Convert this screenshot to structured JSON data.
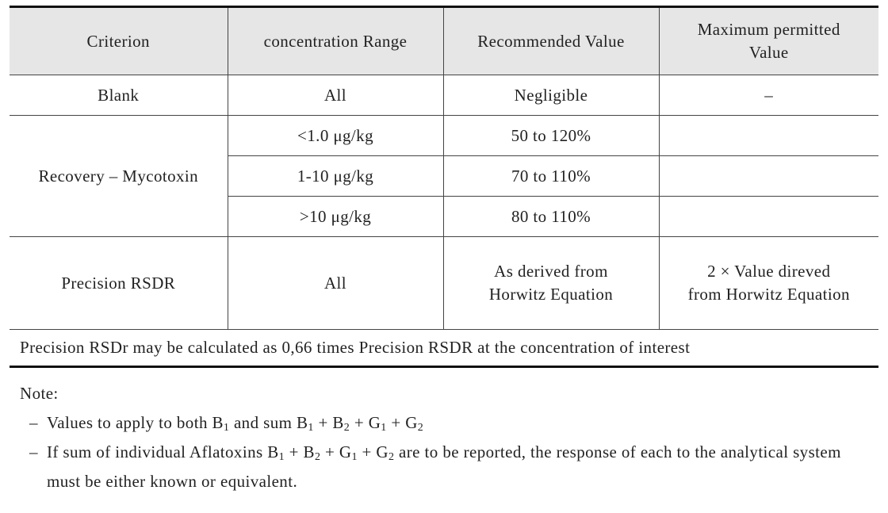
{
  "table": {
    "header": [
      "Criterion",
      "concentration Range",
      "Recommended Value",
      [
        "Maximum permitted",
        "Value"
      ]
    ],
    "rows": [
      [
        "Blank",
        "All",
        "Negligible",
        "–"
      ],
      [
        "Recovery – Mycotoxin",
        "<1.0 μg/kg",
        "50 to 120%"
      ],
      [
        null,
        "1-10 μg/kg",
        "70 to 110%"
      ],
      [
        null,
        ">10 μg/kg",
        "80 to 110%"
      ],
      [
        "Precision RSDR",
        "All",
        [
          "As derived from",
          "Horwitz Equation"
        ],
        [
          "2 × Value direved",
          "from Horwitz Equation"
        ]
      ]
    ],
    "footnote": "Precision RSDr may be calculated as 0,66 times Precision RSDR at the concentration of interest"
  },
  "notes": {
    "title": "Note:",
    "bullet": "–",
    "items": [
      [
        "Values to apply to both B",
        "1",
        " and sum B",
        "1",
        " + B",
        "2",
        " + G",
        "1",
        " + G",
        "2"
      ],
      [
        "If sum of individual Aflatoxins B",
        "1",
        " + B",
        "2",
        " + G",
        "1",
        " + G",
        "2",
        " are to be reported, the response of each to the analytical system must be either known or equivalent."
      ]
    ]
  }
}
